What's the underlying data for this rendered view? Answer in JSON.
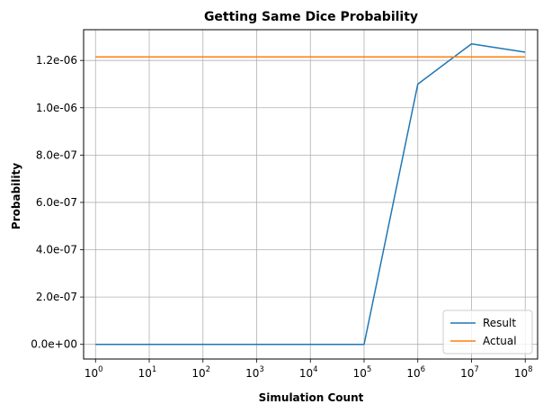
{
  "chart_data": {
    "type": "line",
    "title": "Getting Same Dice Probability",
    "xlabel": "Simulation Count",
    "ylabel": "Probability",
    "xscale": "log",
    "xlim": [
      0.6,
      170000000
    ],
    "ylim": [
      -6.2e-08,
      1.33e-06
    ],
    "x_ticks": [
      {
        "value": 1,
        "base": "10",
        "exp": "0"
      },
      {
        "value": 10,
        "base": "10",
        "exp": "1"
      },
      {
        "value": 100,
        "base": "10",
        "exp": "2"
      },
      {
        "value": 1000,
        "base": "10",
        "exp": "3"
      },
      {
        "value": 10000,
        "base": "10",
        "exp": "4"
      },
      {
        "value": 100000,
        "base": "10",
        "exp": "5"
      },
      {
        "value": 1000000,
        "base": "10",
        "exp": "6"
      },
      {
        "value": 10000000,
        "base": "10",
        "exp": "7"
      },
      {
        "value": 100000000,
        "base": "10",
        "exp": "8"
      }
    ],
    "y_ticks": [
      {
        "value": 0,
        "label": "0.0e+00"
      },
      {
        "value": 2e-07,
        "label": "2.0e-07"
      },
      {
        "value": 4e-07,
        "label": "4.0e-07"
      },
      {
        "value": 6e-07,
        "label": "6.0e-07"
      },
      {
        "value": 8e-07,
        "label": "8.0e-07"
      },
      {
        "value": 1e-06,
        "label": "1.0e-06"
      },
      {
        "value": 1.2e-06,
        "label": "1.2e-06"
      }
    ],
    "grid": true,
    "legend_position": "lower-right",
    "x": [
      1,
      10,
      100,
      1000,
      10000,
      100000,
      1000000,
      10000000,
      100000000
    ],
    "series": [
      {
        "name": "Result",
        "color": "#1f77b4",
        "values": [
          0,
          0,
          0,
          0,
          0,
          0,
          1.1e-06,
          1.27e-06,
          1.235e-06
        ]
      },
      {
        "name": "Actual",
        "color": "#ff7f0e",
        "values": [
          1.215e-06,
          1.215e-06,
          1.215e-06,
          1.215e-06,
          1.215e-06,
          1.215e-06,
          1.215e-06,
          1.215e-06,
          1.215e-06
        ]
      }
    ]
  }
}
